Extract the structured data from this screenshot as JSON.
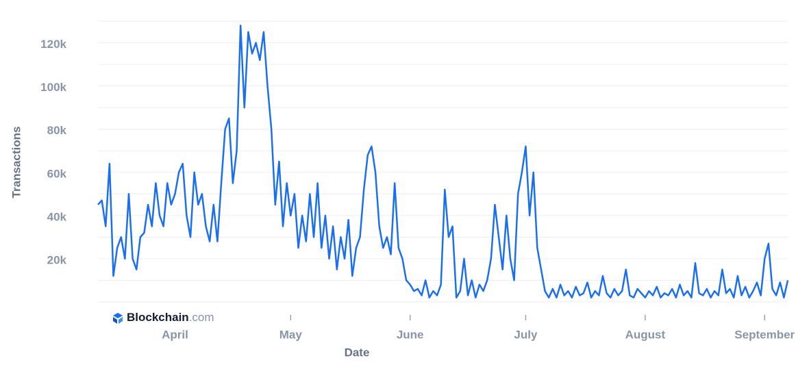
{
  "chart_data": {
    "type": "line",
    "x_label": "Date",
    "y_label": "Transactions",
    "categories": [
      null,
      null,
      null,
      null,
      null,
      null,
      null,
      null,
      null,
      null,
      null,
      null,
      null,
      null,
      null,
      null,
      null,
      null,
      null,
      null,
      "April",
      null,
      null,
      null,
      null,
      null,
      null,
      null,
      null,
      null,
      null,
      null,
      null,
      null,
      null,
      null,
      null,
      null,
      null,
      null,
      null,
      null,
      null,
      null,
      null,
      null,
      null,
      null,
      null,
      null,
      "May",
      null,
      null,
      null,
      null,
      null,
      null,
      null,
      null,
      null,
      null,
      null,
      null,
      null,
      null,
      null,
      null,
      null,
      null,
      null,
      null,
      null,
      null,
      null,
      null,
      null,
      null,
      null,
      null,
      null,
      null,
      "June",
      null,
      null,
      null,
      null,
      null,
      null,
      null,
      null,
      null,
      null,
      null,
      null,
      null,
      null,
      null,
      null,
      null,
      null,
      null,
      null,
      null,
      null,
      null,
      null,
      null,
      null,
      null,
      null,
      null,
      "July",
      null,
      null,
      null,
      null,
      null,
      null,
      null,
      null,
      null,
      null,
      null,
      null,
      null,
      null,
      null,
      null,
      null,
      null,
      null,
      null,
      null,
      null,
      null,
      null,
      null,
      null,
      null,
      null,
      null,
      null,
      "August",
      null,
      null,
      null,
      null,
      null,
      null,
      null,
      null,
      null,
      null,
      null,
      null,
      null,
      null,
      null,
      null,
      null,
      null,
      null,
      null,
      null,
      null,
      null,
      null,
      null,
      null,
      null,
      null,
      null,
      null,
      "September",
      null,
      null,
      null,
      null,
      null,
      null
    ],
    "series": [
      {
        "color": "#1a6ff0",
        "values": [
          45000,
          47000,
          35000,
          64000,
          12000,
          25000,
          30000,
          20000,
          50000,
          20000,
          15000,
          30000,
          32000,
          45000,
          35000,
          55000,
          40000,
          35000,
          55000,
          45000,
          50000,
          60000,
          64000,
          40000,
          30000,
          60000,
          45000,
          50000,
          35000,
          28000,
          45000,
          28000,
          55000,
          80000,
          85000,
          55000,
          70000,
          128000,
          90000,
          125000,
          115000,
          120000,
          112000,
          125000,
          100000,
          80000,
          45000,
          65000,
          35000,
          55000,
          40000,
          50000,
          25000,
          40000,
          28000,
          50000,
          30000,
          55000,
          25000,
          40000,
          20000,
          35000,
          15000,
          30000,
          20000,
          38000,
          12000,
          25000,
          30000,
          52000,
          68000,
          72000,
          60000,
          35000,
          25000,
          30000,
          22000,
          55000,
          25000,
          20000,
          10000,
          8000,
          5000,
          6000,
          3000,
          10000,
          2000,
          5000,
          3000,
          8000,
          52000,
          30000,
          35000,
          2000,
          5000,
          20000,
          3000,
          10000,
          2000,
          8000,
          5000,
          10000,
          20000,
          45000,
          30000,
          15000,
          40000,
          20000,
          10000,
          50000,
          60000,
          72000,
          40000,
          60000,
          25000,
          15000,
          5000,
          2000,
          6000,
          2000,
          8000,
          3000,
          5000,
          2000,
          7000,
          3000,
          4000,
          9000,
          2000,
          5000,
          3000,
          12000,
          4000,
          2000,
          6000,
          3000,
          5000,
          15000,
          3000,
          2000,
          6000,
          4000,
          2000,
          5000,
          3000,
          7000,
          2000,
          4000,
          3000,
          6000,
          2000,
          8000,
          3000,
          5000,
          2000,
          18000,
          4000,
          3000,
          6000,
          2000,
          5000,
          3000,
          15000,
          4000,
          6000,
          2000,
          12000,
          3000,
          7000,
          2000,
          5000,
          9000,
          3000,
          20000,
          27000,
          6000,
          3000,
          9000,
          2000,
          10000
        ]
      }
    ],
    "ylim": [
      0,
      130000
    ],
    "yticks": [
      {
        "value": 20000,
        "label": "20k"
      },
      {
        "value": 40000,
        "label": "40k"
      },
      {
        "value": 60000,
        "label": "60k"
      },
      {
        "value": 80000,
        "label": "80k"
      },
      {
        "value": 100000,
        "label": "100k"
      },
      {
        "value": 120000,
        "label": "120k"
      }
    ],
    "ygrid": [
      0,
      10000,
      20000,
      30000,
      40000,
      50000,
      60000,
      70000,
      80000,
      90000,
      100000,
      110000,
      120000,
      130000
    ],
    "grid": true
  },
  "logo": {
    "brand": "Blockchain",
    "suffix": ".com"
  }
}
